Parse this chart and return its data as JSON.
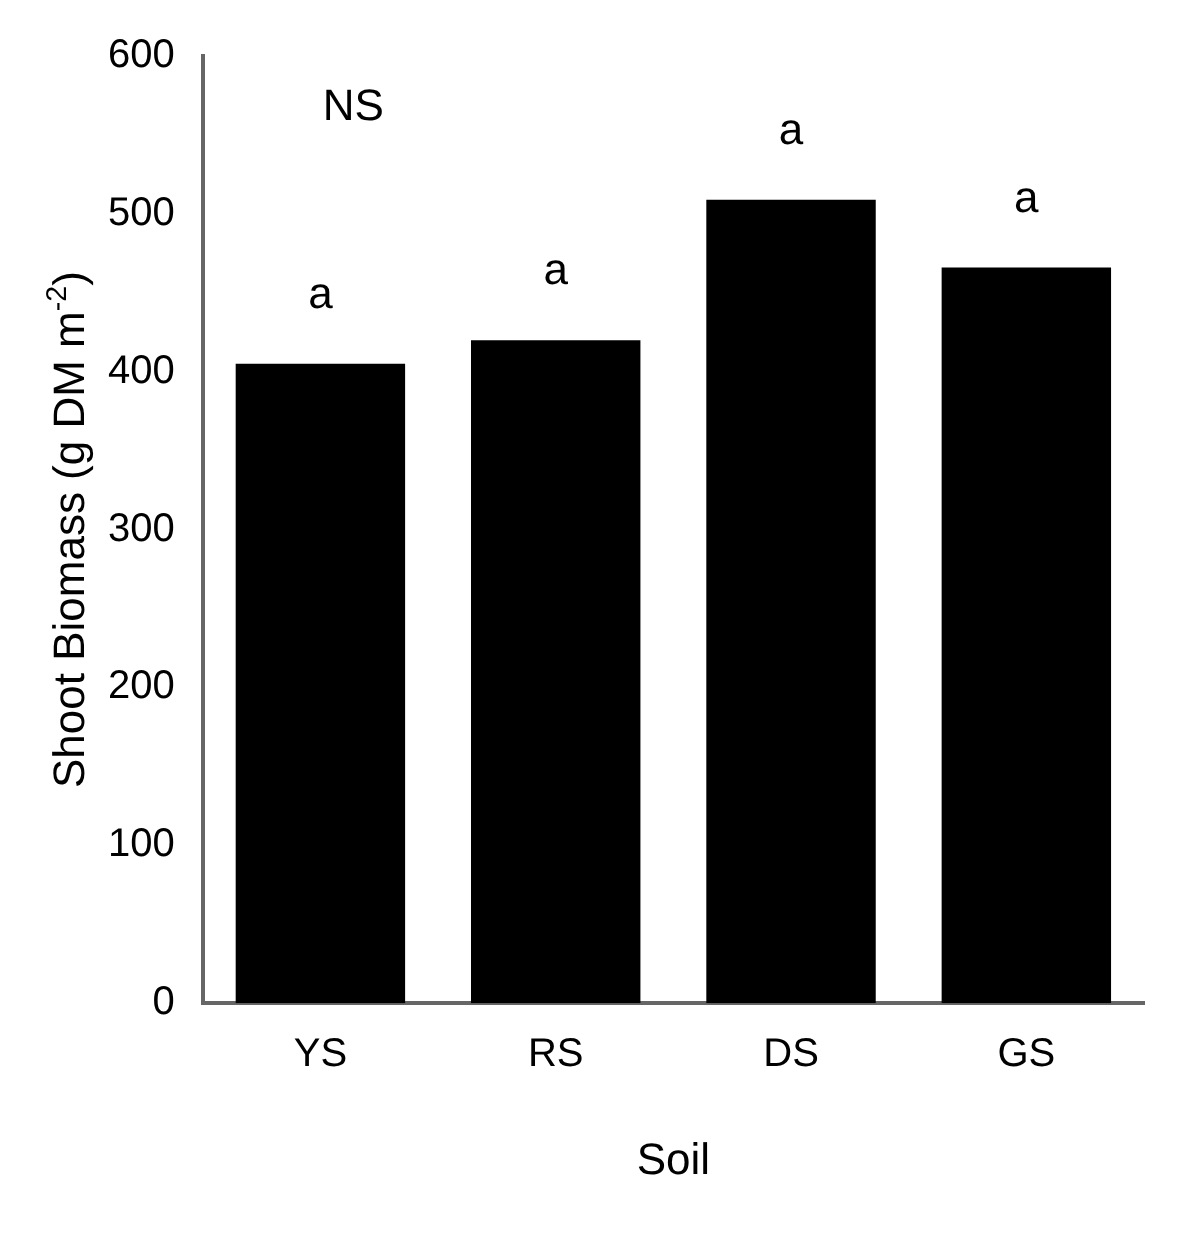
{
  "chart_data": {
    "type": "bar",
    "xlabel": "Soil",
    "ylabel": "Shoot Biomass (g DM m$^{-2}$)",
    "categories": [
      "YS",
      "RS",
      "DS",
      "GS"
    ],
    "values": [
      405,
      420,
      509,
      466
    ],
    "color": "#000000",
    "ylim": [
      0,
      600
    ],
    "yticks": [
      0,
      100,
      200,
      300,
      400,
      500,
      600
    ],
    "grid": false,
    "legend": false,
    "annotations": [
      "NS",
      {
        "text": "a",
        "x": "YS",
        "y": 405
      },
      {
        "text": "a",
        "x": "RS",
        "y": 420
      },
      {
        "text": "a",
        "x": "DS",
        "y": 509
      },
      {
        "text": "a",
        "x": "GS",
        "y": 466
      }
    ]
  }
}
